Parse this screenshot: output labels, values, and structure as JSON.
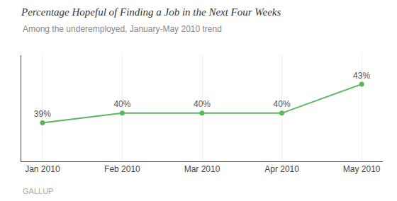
{
  "chart_data": {
    "type": "line",
    "title": "Percentage Hopeful of Finding a Job in the Next Four Weeks",
    "subtitle": "Among the underemployed, January-May 2010 trend",
    "annotations": [
      "GALLUP"
    ],
    "categories": [
      "Jan 2010",
      "Feb 2010",
      "Mar 2010",
      "Apr 2010",
      "May 2010"
    ],
    "values": [
      39,
      40,
      40,
      40,
      43
    ],
    "value_labels": [
      "39%",
      "40%",
      "40%",
      "40%",
      "43%"
    ],
    "data_labels": true,
    "color": "#5ab85c",
    "marker": "circle",
    "ylim": [
      35,
      46
    ],
    "tick_labels": "x",
    "grid": true
  }
}
